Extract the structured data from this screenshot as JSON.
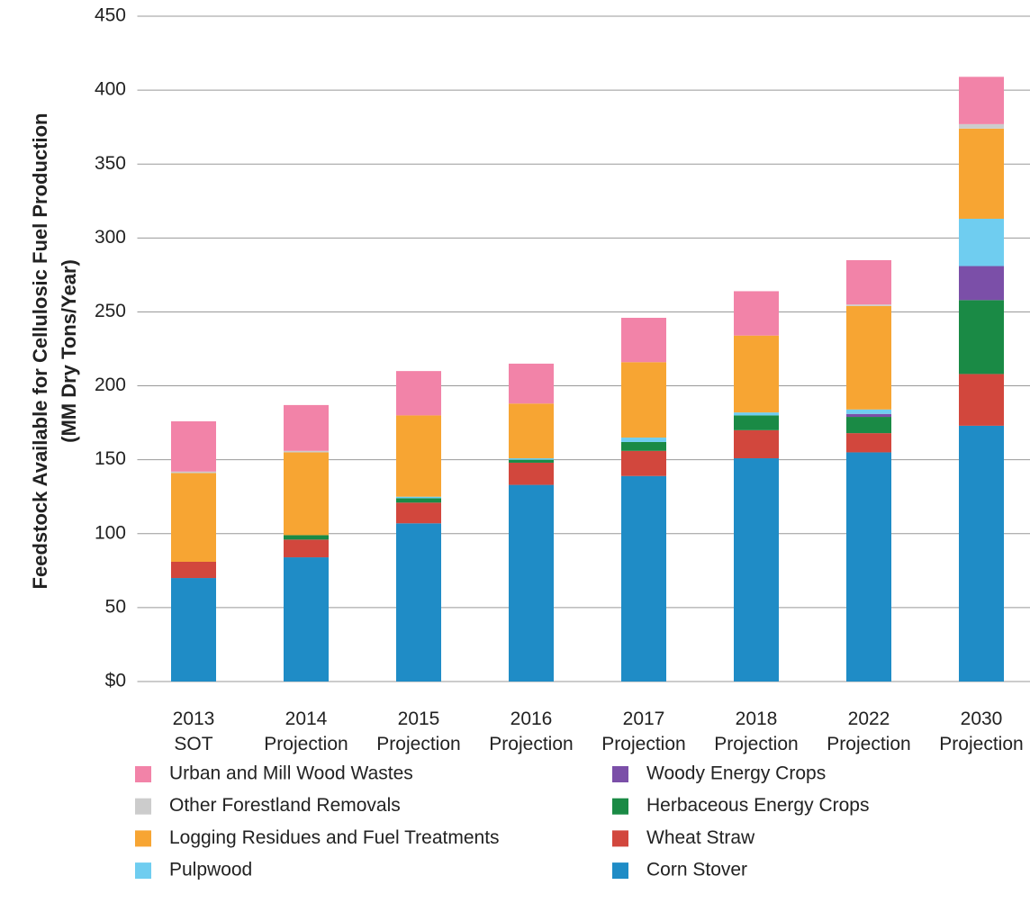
{
  "chart_data": {
    "type": "stacked_bar",
    "ylabel": [
      "Feedstock Available for Cellulosic Fuel Production",
      "(MM Dry Tons/Year)"
    ],
    "categories": [
      "2013\nSOT",
      "2014\nProjection",
      "2015\nProjection",
      "2016\nProjection",
      "2017\nProjection",
      "2018\nProjection",
      "2022\nProjection",
      "2030\nProjection"
    ],
    "series": [
      {
        "name": "Corn Stover",
        "color": "#1f8cc6",
        "values": [
          70,
          84,
          107,
          133,
          139,
          151,
          155,
          173
        ]
      },
      {
        "name": "Wheat Straw",
        "color": "#d2473d",
        "values": [
          11,
          12,
          14,
          15,
          17,
          19,
          13,
          35
        ]
      },
      {
        "name": "Herbaceous Energy Crops",
        "color": "#1a8a45",
        "values": [
          0,
          3,
          3,
          2,
          6,
          10,
          11,
          50
        ]
      },
      {
        "name": "Woody Energy Crops",
        "color": "#7b4fa8",
        "values": [
          0,
          0,
          0,
          0,
          0,
          0,
          2,
          23
        ]
      },
      {
        "name": "Pulpwood",
        "color": "#6fcdf0",
        "values": [
          0,
          0,
          1,
          1,
          3,
          2,
          3,
          32
        ]
      },
      {
        "name": "Logging Residues and Fuel Treatments",
        "color": "#f7a533",
        "values": [
          60,
          56,
          55,
          37,
          51,
          52,
          70,
          61
        ]
      },
      {
        "name": "Other Forestland Removals",
        "color": "#cccccc",
        "values": [
          1,
          1,
          0,
          0,
          0,
          0,
          1,
          3
        ]
      },
      {
        "name": "Urban and Mill Wood Wastes",
        "color": "#f283a8",
        "values": [
          34,
          31,
          30,
          27,
          30,
          30,
          30,
          32
        ]
      }
    ],
    "ylim": [
      0,
      450
    ],
    "yticks": [
      {
        "value": 0,
        "label": "$0"
      },
      50,
      100,
      150,
      200,
      250,
      300,
      350,
      400,
      450
    ],
    "grid": true
  }
}
